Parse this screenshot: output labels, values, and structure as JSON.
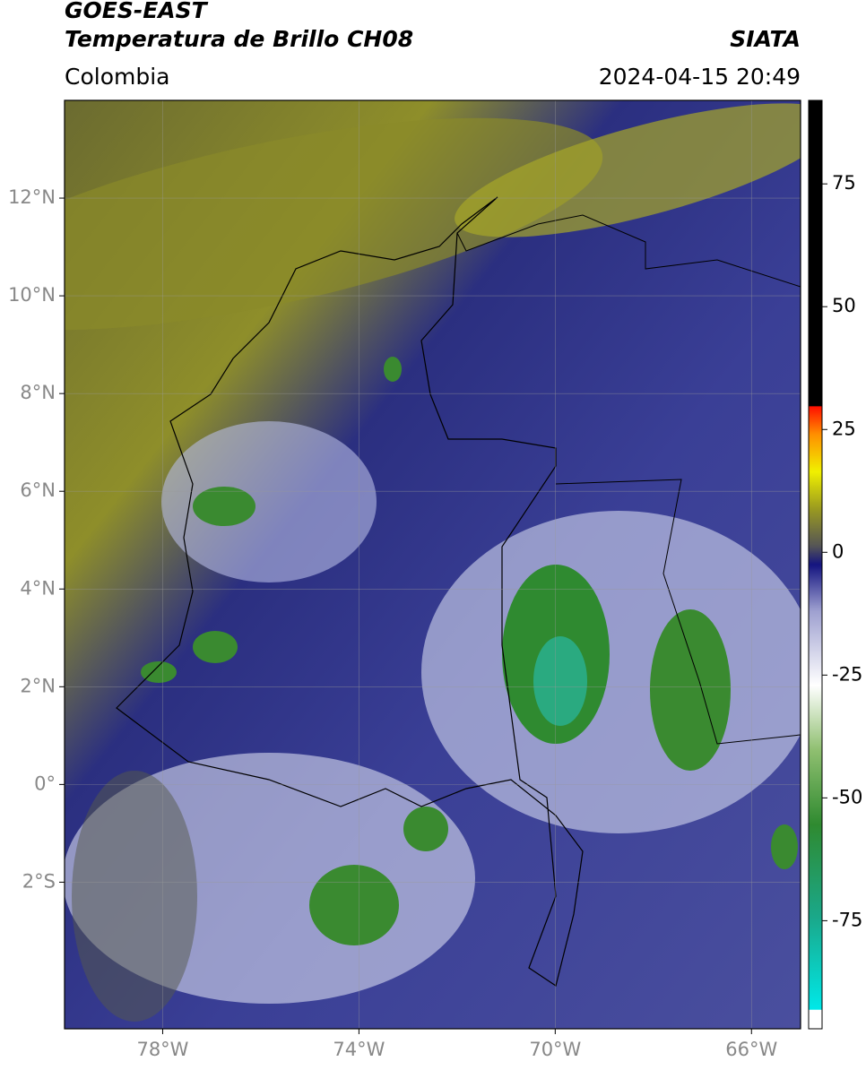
{
  "header": {
    "satellite": "GOES-EAST",
    "product": "Temperatura de Brillo CH08",
    "source": "SIATA",
    "region": "Colombia",
    "datetime": "2024-04-15 20:49"
  },
  "map": {
    "xlim": [
      -80,
      -65
    ],
    "ylim": [
      -5,
      14
    ],
    "xticks": [
      {
        "value": -78,
        "label": "78°W"
      },
      {
        "value": -74,
        "label": "74°W"
      },
      {
        "value": -70,
        "label": "70°W"
      },
      {
        "value": -66,
        "label": "66°W"
      }
    ],
    "yticks": [
      {
        "value": 12,
        "label": "12°N"
      },
      {
        "value": 10,
        "label": "10°N"
      },
      {
        "value": 8,
        "label": "8°N"
      },
      {
        "value": 6,
        "label": "6°N"
      },
      {
        "value": 4,
        "label": "4°N"
      },
      {
        "value": 2,
        "label": "2°N"
      },
      {
        "value": 0,
        "label": "0°"
      },
      {
        "value": -2,
        "label": "2°S"
      }
    ],
    "grid": true
  },
  "colorbar": {
    "lim": [
      -97,
      92
    ],
    "ticks": [
      75,
      50,
      25,
      0,
      -25,
      -50,
      -75
    ]
  }
}
